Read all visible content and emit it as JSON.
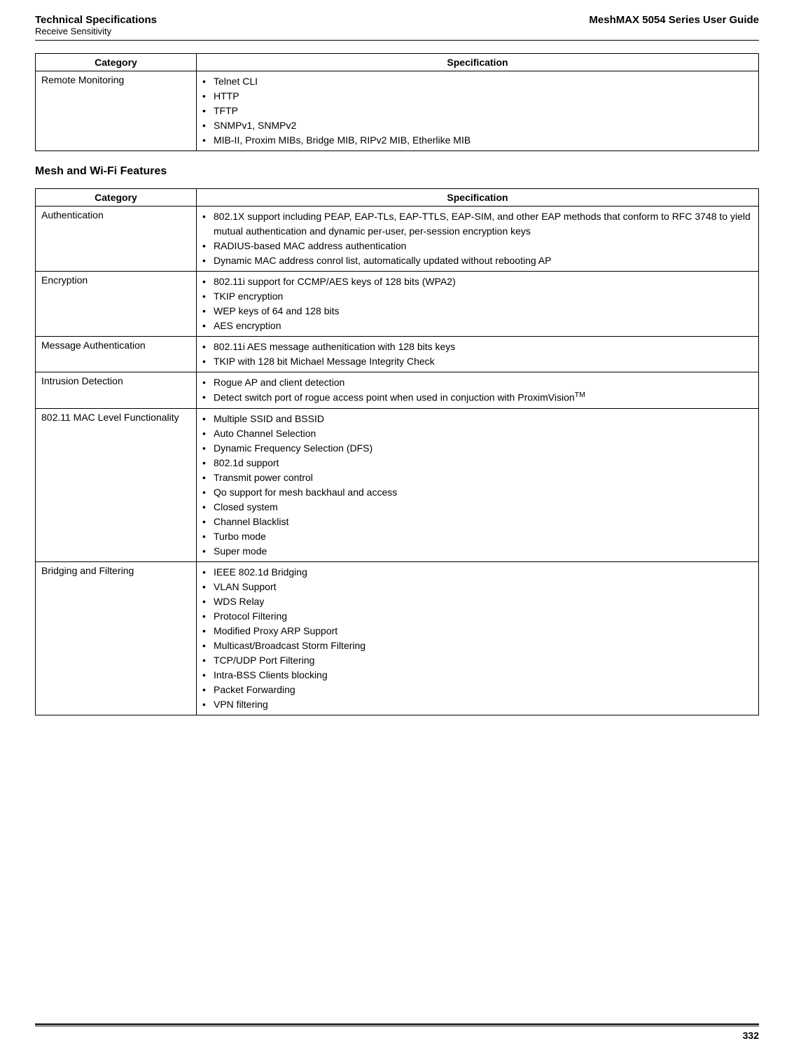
{
  "header": {
    "title": "Technical Specifications",
    "subtitle": "Receive Sensitivity",
    "guide": "MeshMAX 5054 Series User Guide"
  },
  "table1": {
    "col1": "Category",
    "col2": "Specification",
    "rows": [
      {
        "category": "Remote Monitoring",
        "specs": [
          "Telnet CLI",
          "HTTP",
          "TFTP",
          "SNMPv1, SNMPv2",
          "MIB-II, Proxim MIBs, Bridge MIB, RIPv2 MIB, Etherlike MIB"
        ]
      }
    ]
  },
  "section_heading": "Mesh and Wi-Fi Features",
  "table2": {
    "col1": "Category",
    "col2": "Specification",
    "rows": [
      {
        "category": "Authentication",
        "specs": [
          "802.1X support including PEAP, EAP-TLs, EAP-TTLS, EAP-SIM, and other EAP methods that conform to RFC 3748 to yield mutual authentication and dynamic per-user, per-session encryption keys",
          "RADIUS-based MAC address authentication",
          "Dynamic MAC address conrol list, automatically updated without rebooting AP"
        ]
      },
      {
        "category": "Encryption",
        "specs": [
          "802.11i support for CCMP/AES keys of 128 bits (WPA2)",
          "TKIP encryption",
          "WEP keys of 64 and 128 bits",
          "AES encryption"
        ]
      },
      {
        "category": "Message Authentication",
        "specs": [
          "802.11i AES message authenitication with 128 bits keys",
          "TKIP with 128 bit Michael Message Integrity Check"
        ]
      },
      {
        "category": "Intrusion Detection",
        "specs_html": [
          "Rogue AP and client detection",
          "Detect switch port of rogue access point when used in conjuction with ProximVision<sup>TM</sup>"
        ]
      },
      {
        "category": "802.11 MAC Level Functionality",
        "specs": [
          "Multiple SSID and BSSID",
          "Auto Channel Selection",
          "Dynamic Frequency Selection (DFS)",
          "802.1d support",
          "Transmit power control",
          "Qo support for mesh backhaul and access",
          "Closed system",
          "Channel Blacklist",
          "Turbo mode",
          "Super mode"
        ]
      },
      {
        "category": "Bridging and Filtering",
        "specs": [
          "IEEE 802.1d Bridging",
          "VLAN Support",
          "WDS Relay",
          "Protocol Filtering",
          "Modified Proxy ARP Support",
          "Multicast/Broadcast Storm Filtering",
          "TCP/UDP Port Filtering",
          "Intra-BSS Clients blocking",
          "Packet Forwarding",
          "VPN filtering"
        ]
      }
    ]
  },
  "footer": {
    "page_number": "332"
  }
}
